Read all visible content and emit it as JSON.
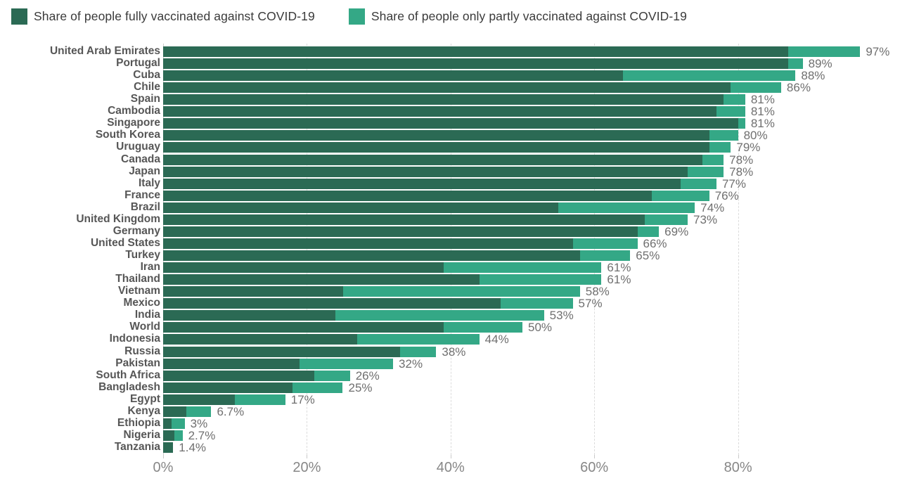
{
  "legend": {
    "fully_label": "Share of people fully vaccinated against COVID-19",
    "partly_label": "Share of people only partly vaccinated against COVID-19"
  },
  "colors": {
    "fully": "#2b6a54",
    "partly": "#34a886",
    "gridline": "#dcdcdc",
    "country_label": "#565656",
    "value_label": "#6f6f6f",
    "axis_label": "#878787"
  },
  "axis": {
    "tick_labels": [
      "0%",
      "20%",
      "40%",
      "60%",
      "80%"
    ],
    "tick_values": [
      0,
      20,
      40,
      60,
      80
    ]
  },
  "chart_data": {
    "type": "bar",
    "orientation": "horizontal",
    "stacked": true,
    "xlim": [
      0,
      100
    ],
    "grid": "vertical-dashed",
    "legend_position": "top",
    "series_names": [
      "Share of people fully vaccinated against COVID-19",
      "Share of people only partly vaccinated against COVID-19"
    ],
    "categories": [
      "United Arab Emirates",
      "Portugal",
      "Cuba",
      "Chile",
      "Spain",
      "Cambodia",
      "Singapore",
      "South Korea",
      "Uruguay",
      "Canada",
      "Japan",
      "Italy",
      "France",
      "Brazil",
      "United Kingdom",
      "Germany",
      "United States",
      "Turkey",
      "Iran",
      "Thailand",
      "Vietnam",
      "Mexico",
      "India",
      "World",
      "Indonesia",
      "Russia",
      "Pakistan",
      "South Africa",
      "Bangladesh",
      "Egypt",
      "Kenya",
      "Ethiopia",
      "Nigeria",
      "Tanzania"
    ],
    "series": [
      {
        "name": "fully_vaccinated",
        "values": [
          87,
          87,
          64,
          79,
          78,
          77,
          80,
          76,
          76,
          75,
          73,
          72,
          68,
          55,
          67,
          66,
          57,
          58,
          39,
          44,
          25,
          47,
          24,
          39,
          27,
          33,
          19,
          21,
          18,
          10,
          3.2,
          1.2,
          1.6,
          1.4
        ]
      },
      {
        "name": "partly_vaccinated",
        "values": [
          10,
          2,
          24,
          7,
          3,
          4,
          1,
          4,
          3,
          3,
          5,
          5,
          8,
          19,
          6,
          3,
          9,
          7,
          22,
          17,
          33,
          10,
          29,
          11,
          17,
          5,
          13,
          5,
          7,
          7,
          3.5,
          1.8,
          1.1,
          0
        ]
      }
    ],
    "total_labels": [
      "97%",
      "89%",
      "88%",
      "86%",
      "81%",
      "81%",
      "81%",
      "80%",
      "79%",
      "78%",
      "78%",
      "77%",
      "76%",
      "74%",
      "73%",
      "69%",
      "66%",
      "65%",
      "61%",
      "61%",
      "58%",
      "57%",
      "53%",
      "50%",
      "44%",
      "38%",
      "32%",
      "26%",
      "25%",
      "17%",
      "6.7%",
      "3%",
      "2.7%",
      "1.4%"
    ]
  }
}
